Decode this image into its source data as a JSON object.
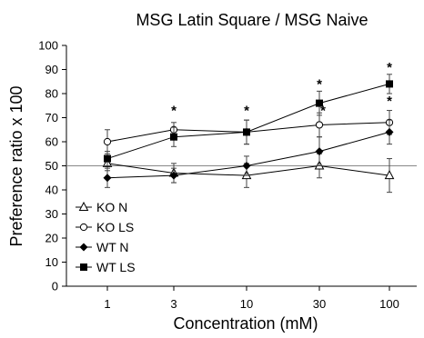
{
  "chart_data": {
    "type": "line",
    "title": "MSG Latin Square / MSG Naive",
    "xlabel": "Concentration (mM)",
    "ylabel": "Preference ratio x 100",
    "categories": [
      "1",
      "3",
      "10",
      "30",
      "100"
    ],
    "ylim": [
      0,
      100
    ],
    "yticks": [
      0,
      10,
      20,
      30,
      40,
      50,
      60,
      70,
      80,
      90,
      100
    ],
    "reference_line": 50,
    "grid": false,
    "legend_placement": "lower-left",
    "series": [
      {
        "name": "KO N",
        "marker": "open-triangle",
        "values": [
          51,
          47,
          46,
          50,
          46
        ],
        "errors": [
          3,
          4,
          5,
          5,
          7
        ]
      },
      {
        "name": "KO LS",
        "marker": "open-circle",
        "values": [
          60,
          65,
          64,
          67,
          68
        ],
        "errors": [
          5,
          3,
          5,
          5,
          5
        ]
      },
      {
        "name": "WT N",
        "marker": "filled-diamond",
        "values": [
          45,
          46,
          50,
          56,
          64
        ],
        "errors": [
          4,
          3,
          4,
          6,
          5
        ]
      },
      {
        "name": "WT LS",
        "marker": "filled-square",
        "values": [
          53,
          62,
          64,
          76,
          84
        ],
        "errors": [
          3,
          4,
          5,
          5,
          4
        ]
      }
    ],
    "annotations": [
      {
        "text": "*",
        "category": "3",
        "y": 73
      },
      {
        "text": "*",
        "category": "10",
        "y": 73
      },
      {
        "text": "*",
        "category": "30",
        "y": 84
      },
      {
        "text": "*",
        "category": "30",
        "y": 73
      },
      {
        "text": "*",
        "category": "100",
        "y": 91
      },
      {
        "text": "*",
        "category": "100",
        "y": 77
      }
    ]
  }
}
